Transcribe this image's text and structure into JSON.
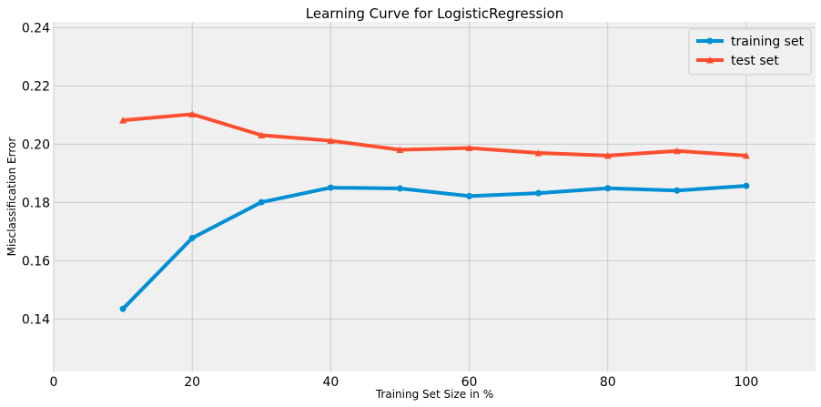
{
  "chart_data": {
    "type": "line",
    "title": "Learning Curve for LogisticRegression",
    "xlabel": "Training Set Size in %",
    "ylabel": "Misclassification Error",
    "xlim": [
      0,
      110
    ],
    "ylim": [
      0.122,
      0.242
    ],
    "xticks": [
      0,
      20,
      40,
      60,
      80,
      100
    ],
    "yticks": [
      0.14,
      0.16,
      0.18,
      0.2,
      0.22,
      0.24
    ],
    "ytick_labels": [
      "0.14",
      "0.16",
      "0.18",
      "0.20",
      "0.22",
      "0.24"
    ],
    "grid": true,
    "legend_position": "top-right",
    "x": [
      10,
      20,
      30,
      40,
      50,
      60,
      70,
      80,
      90,
      100
    ],
    "series": [
      {
        "name": "training set",
        "color": "#008fd5",
        "marker": "circle",
        "values": [
          0.1435,
          0.1678,
          0.1801,
          0.1851,
          0.1848,
          0.1822,
          0.1832,
          0.1849,
          0.1841,
          0.1857
        ]
      },
      {
        "name": "test set",
        "color": "#fc4f30",
        "marker": "triangle",
        "values": [
          0.2082,
          0.2103,
          0.2031,
          0.2012,
          0.1981,
          0.1987,
          0.197,
          0.1961,
          0.1977,
          0.1961
        ]
      }
    ]
  }
}
